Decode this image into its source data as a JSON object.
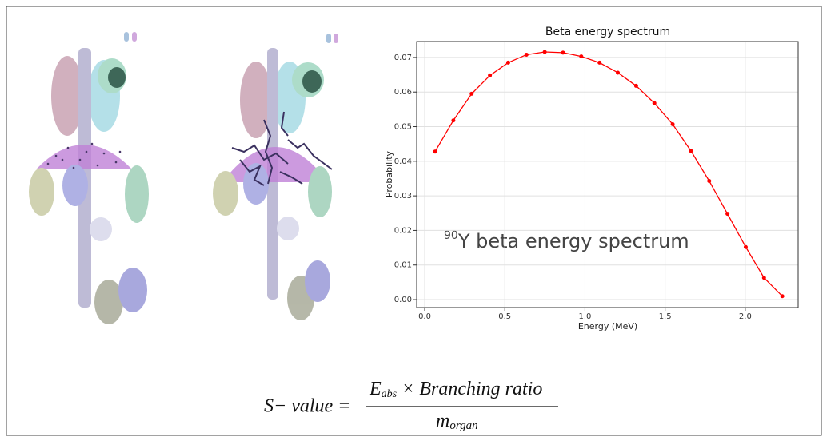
{
  "chart_data": {
    "type": "line",
    "title": "Beta energy spectrum",
    "x_label": "Energy (MeV)",
    "y_label": "Probability",
    "annotation": {
      "sup": "90",
      "text": "Y beta energy spectrum"
    },
    "x": [
      0.065,
      0.179,
      0.293,
      0.407,
      0.521,
      0.635,
      0.749,
      0.863,
      0.977,
      1.091,
      1.205,
      1.319,
      1.433,
      1.547,
      1.661,
      1.775,
      1.889,
      2.003,
      2.117,
      2.231
    ],
    "series": [
      {
        "name": "Beta energy spectrum",
        "color": "#ff0000",
        "values": [
          0.0428,
          0.0518,
          0.0595,
          0.0648,
          0.0685,
          0.0708,
          0.0716,
          0.0714,
          0.0703,
          0.0685,
          0.0656,
          0.0618,
          0.0568,
          0.0507,
          0.043,
          0.0343,
          0.0248,
          0.0152,
          0.0063,
          0.001
        ]
      }
    ],
    "xlim": [
      -0.05,
      2.33
    ],
    "ylim": [
      -0.0023,
      0.0746
    ],
    "xticks": [
      {
        "value": 0,
        "label": "0.0"
      },
      {
        "value": 0.5,
        "label": "0.5"
      },
      {
        "value": 1,
        "label": "1.0"
      },
      {
        "value": 1.5,
        "label": "1.5"
      },
      {
        "value": 2,
        "label": "2.0"
      }
    ],
    "yticks": [
      {
        "value": 0,
        "label": "0.00"
      },
      {
        "value": 0.01,
        "label": "0.01"
      },
      {
        "value": 0.02,
        "label": "0.02"
      },
      {
        "value": 0.03,
        "label": "0.03"
      },
      {
        "value": 0.04,
        "label": "0.04"
      },
      {
        "value": 0.05,
        "label": "0.05"
      },
      {
        "value": 0.06,
        "label": "0.06"
      },
      {
        "value": 0.07,
        "label": "0.07"
      }
    ],
    "grid": true
  },
  "formula": {
    "lhs": "S− value =",
    "numerator": {
      "symbol": "E",
      "sub": "abs",
      "rest": "× Branching ratio"
    },
    "denominator": {
      "symbol": "m",
      "sub": "organ"
    }
  }
}
